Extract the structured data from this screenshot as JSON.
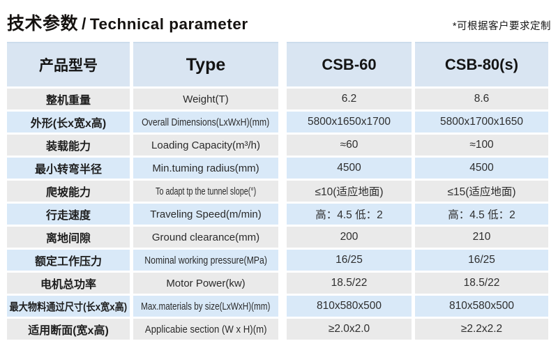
{
  "header": {
    "title_cn": "技术参数",
    "title_sep": "/",
    "title_en": "Technical parameter",
    "note": "*可根据客户要求定制"
  },
  "colors": {
    "header_bg": "#d9e5f2",
    "row_blue_bg": "#d9e9f8",
    "row_gray_bg": "#eaeaea",
    "text": "#1d1d1d"
  },
  "table": {
    "headers": {
      "product_model": "产品型号",
      "type": "Type",
      "csb60": "CSB-60",
      "csb80": "CSB-80(s)"
    },
    "rows": [
      {
        "cn": "整机重量",
        "en": "Weight(T)",
        "csb60": "6.2",
        "csb80": "8.6"
      },
      {
        "cn": "外形(长x宽x高)",
        "en": "Overall Dimensions(LxWxH)(mm)",
        "csb60": "5800x1650x1700",
        "csb80": "5800x1700x1650"
      },
      {
        "cn": "装载能力",
        "en": "Loading Capacity(m³/h)",
        "csb60": "≈60",
        "csb80": "≈100"
      },
      {
        "cn": "最小转弯半径",
        "en": "Min.tuming radius(mm)",
        "csb60": "4500",
        "csb80": "4500"
      },
      {
        "cn": "爬坡能力",
        "en": "To adapt tp the tunnel slope(°)",
        "csb60": "≤10(适应地面)",
        "csb80": "≤15(适应地面)"
      },
      {
        "cn": "行走速度",
        "en": "Traveling Speed(m/min)",
        "csb60": "高：4.5 低：2",
        "csb80": "高：4.5 低：2"
      },
      {
        "cn": "离地间隙",
        "en": "Ground clearance(mm)",
        "csb60": "200",
        "csb80": "210"
      },
      {
        "cn": "额定工作压力",
        "en": "Nominal working pressure(MPa)",
        "csb60": "16/25",
        "csb80": "16/25"
      },
      {
        "cn": "电机总功率",
        "en": "Motor Power(kw)",
        "csb60": "18.5/22",
        "csb80": "18.5/22"
      },
      {
        "cn": "最大物料通过尺寸(长x宽x高)",
        "en": "Max.materials by size(LxWxH)(mm)",
        "csb60": "810x580x500",
        "csb80": "810x580x500"
      },
      {
        "cn": "适用断面(宽x高)",
        "en": "Applicabie section (W x H)(m)",
        "csb60": "≥2.0x2.0",
        "csb80": "≥2.2x2.2"
      }
    ]
  }
}
